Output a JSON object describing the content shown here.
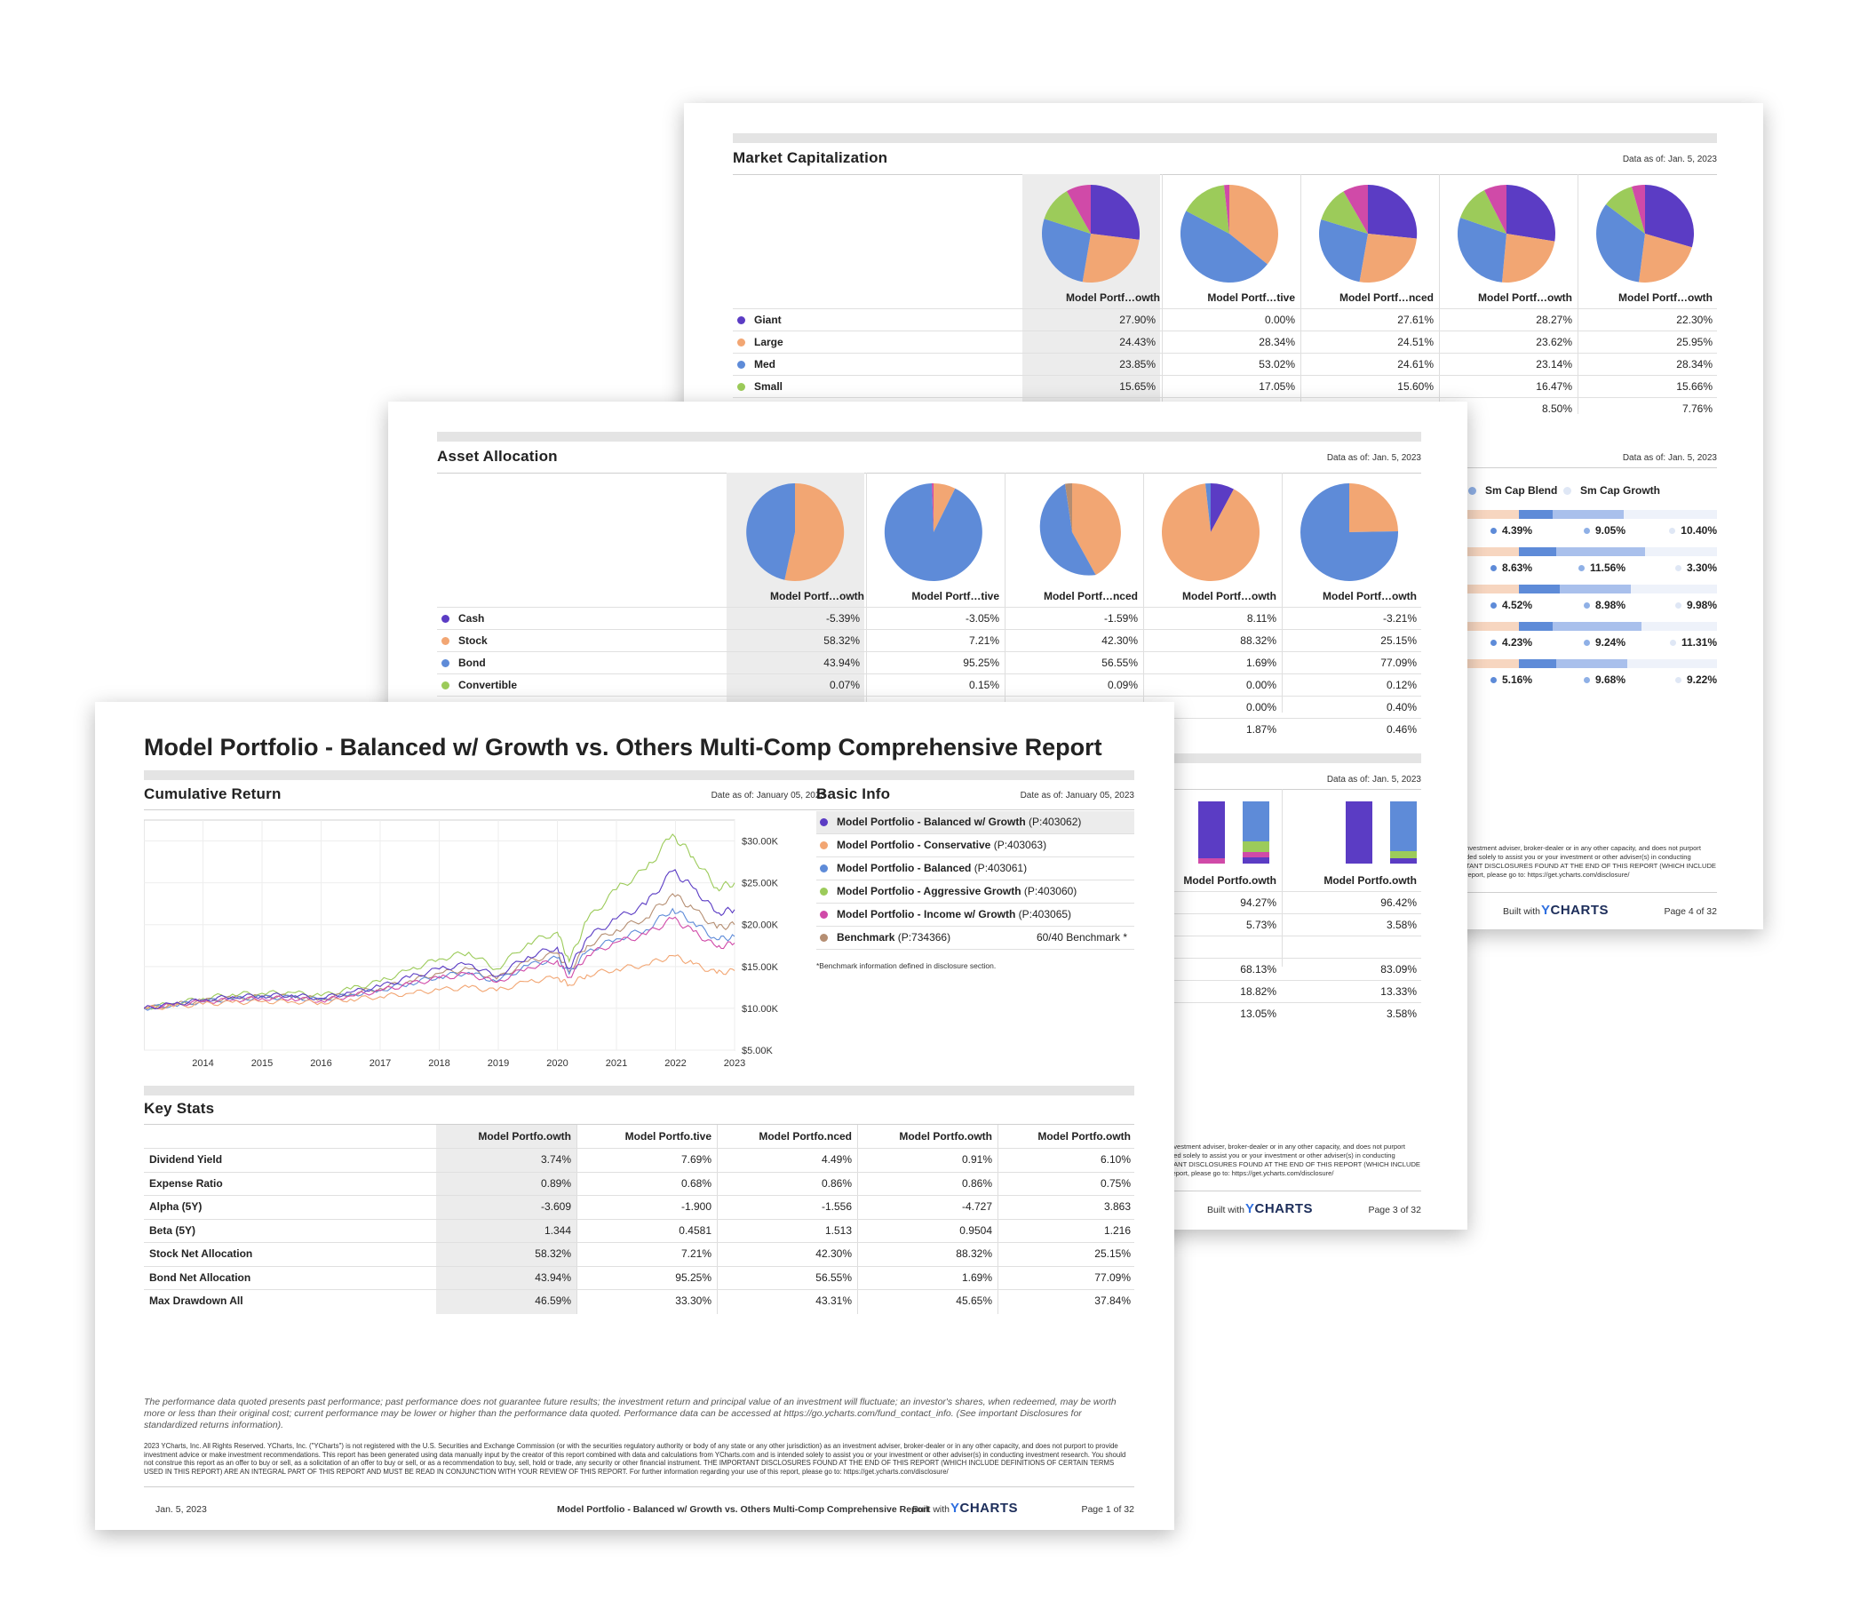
{
  "page4": {
    "section_title": "Market Capitalization",
    "as_of": "Data as of: Jan. 5, 2023",
    "columns": [
      "Model Portf…owth",
      "Model Portf…tive",
      "Model Portf…nced",
      "Model Portf…owth",
      "Model Portf…owth"
    ],
    "rows": [
      {
        "label": "Giant",
        "color": "#5b3cc4",
        "values": [
          "27.90%",
          "0.00%",
          "27.61%",
          "28.27%",
          "22.30%"
        ]
      },
      {
        "label": "Large",
        "color": "#f2a673",
        "values": [
          "24.43%",
          "28.34%",
          "24.51%",
          "23.62%",
          "25.95%"
        ]
      },
      {
        "label": "Med",
        "color": "#5e8bd8",
        "values": [
          "23.85%",
          "53.02%",
          "24.61%",
          "23.14%",
          "28.34%"
        ]
      },
      {
        "label": "Small",
        "color": "#9ccb5a",
        "values": [
          "15.65%",
          "17.05%",
          "15.60%",
          "16.47%",
          "15.66%"
        ]
      }
    ],
    "hidden_row_values": [
      "8.50%",
      "7.76%"
    ],
    "style_section_as_of": "Data as of: Jan. 5, 2023",
    "style_legend": [
      "Sm Cap Blend",
      "Sm Cap Growth"
    ],
    "style_rows": [
      [
        "4.39%",
        "9.05%",
        "10.40%"
      ],
      [
        "8.63%",
        "11.56%",
        "3.30%"
      ],
      [
        "4.52%",
        "8.98%",
        "9.98%"
      ],
      [
        "4.23%",
        "9.24%",
        "11.31%"
      ],
      [
        "5.16%",
        "9.68%",
        "9.22%"
      ]
    ],
    "disclaimer_lines": [
      "nvestment adviser, broker-dealer or in any other capacity, and does not purport",
      "ded solely to assist you or your investment or other adviser(s) in conducting",
      "TANT DISCLOSURES FOUND AT THE END OF THIS REPORT (WHICH INCLUDE",
      "report, please go to: https://get.ycharts.com/disclosure/"
    ],
    "built_with": "Built with",
    "brand": "CHARTS",
    "brand_y": "Y",
    "page_num": "Page 4 of 32"
  },
  "page3": {
    "section_title": "Asset Allocation",
    "as_of": "Data as of: Jan. 5, 2023",
    "columns": [
      "Model Portf…owth",
      "Model Portf…tive",
      "Model Portf…nced",
      "Model Portf…owth",
      "Model Portf…owth"
    ],
    "rows": [
      {
        "label": "Cash",
        "color": "#5b3cc4",
        "values": [
          "-5.39%",
          "-3.05%",
          "-1.59%",
          "8.11%",
          "-3.21%"
        ]
      },
      {
        "label": "Stock",
        "color": "#f2a673",
        "values": [
          "58.32%",
          "7.21%",
          "42.30%",
          "88.32%",
          "25.15%"
        ]
      },
      {
        "label": "Bond",
        "color": "#5e8bd8",
        "values": [
          "43.94%",
          "95.25%",
          "56.55%",
          "1.69%",
          "77.09%"
        ]
      },
      {
        "label": "Convertible",
        "color": "#9ccb5a",
        "values": [
          "0.07%",
          "0.15%",
          "0.09%",
          "0.00%",
          "0.12%"
        ]
      }
    ],
    "hidden_rows": [
      [
        "0.00%",
        "0.40%"
      ],
      [
        "1.87%",
        "0.46%"
      ]
    ],
    "bars_as_of": "Data as of: Jan. 5, 2023",
    "bar_columns": [
      "Model Portfo.owth",
      "Model Portfo.owth"
    ],
    "bar_values_a": [
      [
        "94.27%",
        "96.42%"
      ],
      [
        "5.73%",
        "3.58%"
      ]
    ],
    "bar_values_b": [
      [
        "68.13%",
        "83.09%"
      ],
      [
        "18.82%",
        "13.33%"
      ],
      [
        "13.05%",
        "3.58%"
      ]
    ],
    "disclaimer_lines": [
      "nvestment adviser, broker-dealer or in any other capacity, and does not purport",
      "ded solely to assist you or your investment or other adviser(s) in conducting",
      "TANT DISCLOSURES FOUND AT THE END OF THIS REPORT (WHICH INCLUDE",
      "report, please go to: https://get.ycharts.com/disclosure/"
    ],
    "built_with": "Built with",
    "brand": "CHARTS",
    "brand_y": "Y",
    "page_num": "Page 3 of 32"
  },
  "page1": {
    "title": "Model Portfolio - Balanced w/ Growth vs. Others Multi-Comp Comprehensive Report",
    "cumulative": {
      "title": "Cumulative Return",
      "as_of": "Date as of: January 05, 2023"
    },
    "basic_info": {
      "title": "Basic Info",
      "as_of": "Date as of: January 05, 2023",
      "items": [
        {
          "name": "Model Portfolio - Balanced w/ Growth",
          "id": "(P:403062)",
          "color": "#5b3cc4"
        },
        {
          "name": "Model Portfolio - Conservative",
          "id": "(P:403063)",
          "color": "#f2a673"
        },
        {
          "name": "Model Portfolio - Balanced",
          "id": "(P:403061)",
          "color": "#5e8bd8"
        },
        {
          "name": "Model Portfolio - Aggressive Growth",
          "id": "(P:403060)",
          "color": "#9ccb5a"
        },
        {
          "name": "Model Portfolio - Income w/ Growth",
          "id": "(P:403065)",
          "color": "#d04aa8"
        },
        {
          "name": "Benchmark",
          "id": "(P:734366)",
          "color": "#b58e72",
          "right": "60/40 Benchmark *"
        }
      ],
      "note": "*Benchmark information defined in disclosure section."
    },
    "key_stats": {
      "title": "Key Stats",
      "columns": [
        "Model Portfo.owth",
        "Model Portfo.tive",
        "Model Portfo.nced",
        "Model Portfo.owth",
        "Model Portfo.owth"
      ],
      "rows": [
        {
          "label": "Dividend Yield",
          "values": [
            "3.74%",
            "7.69%",
            "4.49%",
            "0.91%",
            "6.10%"
          ]
        },
        {
          "label": "Expense Ratio",
          "values": [
            "0.89%",
            "0.68%",
            "0.86%",
            "0.86%",
            "0.75%"
          ]
        },
        {
          "label": "Alpha (5Y)",
          "values": [
            "-3.609",
            "-1.900",
            "-1.556",
            "-4.727",
            "3.863"
          ]
        },
        {
          "label": "Beta (5Y)",
          "values": [
            "1.344",
            "0.4581",
            "1.513",
            "0.9504",
            "1.216"
          ]
        },
        {
          "label": "Stock Net Allocation",
          "values": [
            "58.32%",
            "7.21%",
            "42.30%",
            "88.32%",
            "25.15%"
          ]
        },
        {
          "label": "Bond Net Allocation",
          "values": [
            "43.94%",
            "95.25%",
            "56.55%",
            "1.69%",
            "77.09%"
          ]
        },
        {
          "label": "Max Drawdown All",
          "values": [
            "46.59%",
            "33.30%",
            "43.31%",
            "45.65%",
            "37.84%"
          ]
        }
      ]
    },
    "disclaimer_italic": "The performance data quoted presents past performance; past performance does not guarantee future results; the investment return and principal value of an investment will fluctuate; an investor's shares, when redeemed, may be worth more or less than their original cost; current performance may be lower or higher than the performance data quoted. Performance data can be accessed at https://go.ycharts.com/fund_contact_info. (See important Disclosures for standardized returns information).",
    "disclaimer_small": "2023 YCharts, Inc. All Rights Reserved. YCharts, Inc. (\"YCharts\") is not registered with the U.S. Securities and Exchange Commission (or with the securities regulatory authority or body of any state or any other jurisdiction) as an investment adviser, broker-dealer or in any other capacity, and does not purport to provide investment advice or make investment recommendations. This report has been generated using data manually input by the creator of this report combined with data and calculations from YCharts.com and is intended solely to assist you or your investment or other adviser(s) in conducting investment research. You should not construe this report as an offer to buy or sell, as a solicitation of an offer to buy or sell, or as a recommendation to buy, sell, hold or trade, any security or other financial instrument. THE IMPORTANT DISCLOSURES FOUND AT THE END OF THIS REPORT (WHICH INCLUDE DEFINITIONS OF CERTAIN TERMS USED IN THIS REPORT) ARE AN INTEGRAL PART OF THIS REPORT AND MUST BE READ IN CONJUNCTION WITH YOUR REVIEW OF THIS REPORT. For further information regarding your use of this report, please go to: https://get.ycharts.com/disclosure/",
    "footer": {
      "date": "Jan. 5, 2023",
      "report_name": "Model Portfolio - Balanced w/ Growth vs. Others Multi-Comp Comprehensive Report",
      "built_with": "Built with",
      "brand": "CHARTS",
      "brand_y": "Y",
      "page_num": "Page 1 of 32"
    }
  },
  "chart_data": {
    "type": "line",
    "title": "Cumulative Return",
    "xlabel": "",
    "ylabel": "",
    "x_ticks": [
      "2014",
      "2015",
      "2016",
      "2017",
      "2018",
      "2019",
      "2020",
      "2021",
      "2022",
      "2023"
    ],
    "y_ticks": [
      "$30.00K",
      "$25.00K",
      "$20.00K",
      "$15.00K",
      "$10.00K",
      "$5.00K"
    ],
    "ylim": [
      5000,
      32500
    ],
    "xlim": [
      2013.0,
      2023.0
    ],
    "x": [
      2013.0,
      2013.5,
      2014.0,
      2014.5,
      2015.0,
      2015.5,
      2016.0,
      2016.5,
      2017.0,
      2017.5,
      2018.0,
      2018.5,
      2018.97,
      2019.5,
      2020.0,
      2020.2,
      2020.5,
      2021.0,
      2021.5,
      2021.95,
      2022.3,
      2022.7,
      2023.0
    ],
    "series": [
      {
        "name": "Model Portfolio - Balanced w/ Growth",
        "color": "#5b3cc4",
        "values": [
          10000,
          10500,
          11000,
          11400,
          11500,
          11600,
          11200,
          11900,
          12600,
          13700,
          14700,
          15300,
          13800,
          16200,
          17300,
          14700,
          18400,
          20700,
          22400,
          26400,
          24400,
          21400,
          21800
        ]
      },
      {
        "name": "Model Portfolio - Conservative",
        "color": "#f2a673",
        "values": [
          10000,
          10200,
          10500,
          10700,
          10800,
          10800,
          10700,
          11100,
          11400,
          11800,
          12200,
          12500,
          12100,
          13200,
          13700,
          12800,
          14000,
          14700,
          15200,
          16300,
          15300,
          14200,
          14500
        ]
      },
      {
        "name": "Model Portfolio - Balanced",
        "color": "#5e8bd8",
        "values": [
          10000,
          10400,
          10800,
          11100,
          11300,
          11300,
          11000,
          11600,
          12200,
          13000,
          13800,
          14300,
          13200,
          15100,
          16000,
          14100,
          16800,
          18300,
          19400,
          21900,
          20300,
          18200,
          18600
        ]
      },
      {
        "name": "Model Portfolio - Aggressive Growth",
        "color": "#9ccb5a",
        "values": [
          10000,
          10600,
          11200,
          11700,
          11800,
          11900,
          11500,
          12300,
          13200,
          14600,
          15900,
          16700,
          14700,
          17800,
          19100,
          15600,
          20500,
          24200,
          26600,
          30800,
          28100,
          24400,
          25000
        ]
      },
      {
        "name": "Model Portfolio - Income w/ Growth",
        "color": "#d04aa8",
        "values": [
          10000,
          10400,
          10800,
          11000,
          11200,
          11200,
          10900,
          11500,
          12100,
          12900,
          13600,
          14100,
          13100,
          14900,
          15700,
          13700,
          16300,
          17900,
          18800,
          20700,
          19200,
          17300,
          17800
        ]
      },
      {
        "name": "Benchmark",
        "color": "#b58e72",
        "values": [
          10000,
          10450,
          10900,
          11200,
          11400,
          11450,
          11100,
          11750,
          12400,
          13300,
          14200,
          14700,
          13500,
          15600,
          16600,
          14400,
          17500,
          19400,
          20800,
          23700,
          21900,
          19600,
          20000
        ]
      }
    ],
    "grid": true
  }
}
